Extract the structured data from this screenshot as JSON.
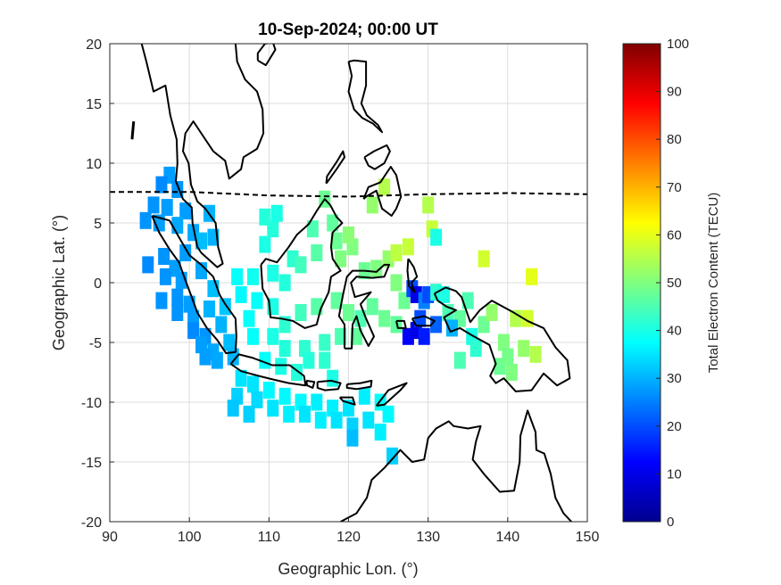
{
  "chart_data": {
    "type": "heatmap",
    "title": "10-Sep-2024; 00:00 UT",
    "xlabel": "Geographic Lon. (°)",
    "ylabel": "Geographic Lat. (°)",
    "xlim": [
      90,
      150
    ],
    "ylim": [
      -20,
      20
    ],
    "xticks": [
      90,
      100,
      110,
      120,
      130,
      140,
      150
    ],
    "yticks": [
      20,
      15,
      10,
      5,
      0,
      -5,
      -10,
      -15,
      -20
    ],
    "grid": true,
    "colorbar": {
      "label": "Total Electron Content (TECU)",
      "range": [
        0,
        100
      ],
      "ticks": [
        0,
        10,
        20,
        30,
        40,
        50,
        60,
        70,
        80,
        90,
        100
      ],
      "colormap": "jet"
    },
    "magnetic_equator": [
      [
        90,
        7.6
      ],
      [
        100,
        7.6
      ],
      [
        110,
        7.3
      ],
      [
        120,
        7.2
      ],
      [
        130,
        7.4
      ],
      [
        140,
        7.5
      ],
      [
        150,
        7.4
      ]
    ],
    "tec_points": [
      [
        97.5,
        9.0,
        28
      ],
      [
        96.5,
        8.2,
        26
      ],
      [
        98.5,
        7.8,
        27
      ],
      [
        95.5,
        6.5,
        27
      ],
      [
        97.2,
        6.3,
        28
      ],
      [
        94.5,
        5.2,
        27
      ],
      [
        96.2,
        5.0,
        28
      ],
      [
        99.5,
        6.0,
        28
      ],
      [
        102.5,
        5.8,
        30
      ],
      [
        98.5,
        4.8,
        29
      ],
      [
        100.5,
        4.2,
        29
      ],
      [
        103.0,
        3.8,
        30
      ],
      [
        101.5,
        3.5,
        31
      ],
      [
        94.8,
        1.5,
        26
      ],
      [
        96.8,
        2.2,
        27
      ],
      [
        98.2,
        1.2,
        28
      ],
      [
        99.5,
        2.5,
        28
      ],
      [
        97.0,
        0.5,
        27
      ],
      [
        99.0,
        0.2,
        28
      ],
      [
        101.5,
        1.0,
        29
      ],
      [
        96.5,
        -1.5,
        27
      ],
      [
        98.5,
        -1.2,
        27
      ],
      [
        100.0,
        -1.8,
        28
      ],
      [
        103.0,
        -0.5,
        31
      ],
      [
        98.5,
        -2.5,
        27
      ],
      [
        100.5,
        -3.0,
        28
      ],
      [
        102.5,
        -2.2,
        30
      ],
      [
        104.5,
        -2.0,
        32
      ],
      [
        100.5,
        -4.0,
        26
      ],
      [
        102.0,
        -4.5,
        27
      ],
      [
        104.0,
        -3.5,
        30
      ],
      [
        101.5,
        -5.2,
        28
      ],
      [
        103.0,
        -5.8,
        29
      ],
      [
        105.0,
        -5.0,
        31
      ],
      [
        102.0,
        -6.2,
        28
      ],
      [
        103.5,
        -6.5,
        29
      ],
      [
        105.5,
        -6.2,
        30
      ],
      [
        106.0,
        0.5,
        38
      ],
      [
        108.0,
        0.5,
        39
      ],
      [
        110.5,
        0.8,
        40
      ],
      [
        112.0,
        0.0,
        41
      ],
      [
        106.5,
        -1.0,
        37
      ],
      [
        108.5,
        -1.5,
        38
      ],
      [
        110.5,
        -2.0,
        40
      ],
      [
        109.5,
        3.2,
        40
      ],
      [
        110.5,
        4.5,
        41
      ],
      [
        111.0,
        5.8,
        40
      ],
      [
        109.5,
        5.5,
        41
      ],
      [
        113.0,
        2.0,
        42
      ],
      [
        115.5,
        4.5,
        45
      ],
      [
        117.0,
        7.0,
        48
      ],
      [
        118.0,
        5.0,
        47
      ],
      [
        114.0,
        1.5,
        44
      ],
      [
        116.0,
        2.5,
        46
      ],
      [
        118.5,
        3.5,
        48
      ],
      [
        120.5,
        3.0,
        50
      ],
      [
        120.0,
        4.0,
        51
      ],
      [
        119.0,
        2.0,
        50
      ],
      [
        122.0,
        1.0,
        48
      ],
      [
        123.5,
        1.2,
        50
      ],
      [
        125.0,
        2.0,
        52
      ],
      [
        123.0,
        6.5,
        52
      ],
      [
        124.5,
        8.0,
        55
      ],
      [
        126.0,
        2.5,
        56
      ],
      [
        127.5,
        3.0,
        57
      ],
      [
        130.0,
        6.5,
        55
      ],
      [
        130.5,
        4.5,
        57
      ],
      [
        131.0,
        3.8,
        40
      ],
      [
        126.0,
        0.0,
        50
      ],
      [
        127.0,
        -1.5,
        48
      ],
      [
        128.0,
        -0.5,
        20
      ],
      [
        128.5,
        -1.0,
        10
      ],
      [
        129.5,
        -1.5,
        25
      ],
      [
        130.0,
        -1.0,
        20
      ],
      [
        131.0,
        -0.8,
        42
      ],
      [
        132.0,
        -1.0,
        40
      ],
      [
        132.5,
        -2.5,
        45
      ],
      [
        134.0,
        -3.0,
        47
      ],
      [
        135.0,
        -1.5,
        45
      ],
      [
        127.5,
        -4.5,
        12
      ],
      [
        128.5,
        -4.0,
        10
      ],
      [
        129.5,
        -4.5,
        15
      ],
      [
        129.0,
        -3.0,
        20
      ],
      [
        131.0,
        -3.5,
        22
      ],
      [
        133.0,
        -3.8,
        30
      ],
      [
        135.5,
        -4.5,
        40
      ],
      [
        134.0,
        -6.5,
        45
      ],
      [
        136.0,
        -5.5,
        42
      ],
      [
        137.0,
        -3.5,
        48
      ],
      [
        138.0,
        -2.5,
        52
      ],
      [
        137.0,
        2.0,
        58
      ],
      [
        141.0,
        -3.0,
        55
      ],
      [
        142.5,
        -3.0,
        58
      ],
      [
        143.0,
        0.5,
        60
      ],
      [
        139.0,
        -7.0,
        48
      ],
      [
        140.5,
        -7.5,
        50
      ],
      [
        142.0,
        -5.5,
        52
      ],
      [
        143.5,
        -6.0,
        55
      ],
      [
        139.5,
        -5.0,
        50
      ],
      [
        140.0,
        -6.2,
        49
      ],
      [
        112.0,
        -3.5,
        42
      ],
      [
        114.0,
        -2.5,
        44
      ],
      [
        116.0,
        -2.0,
        46
      ],
      [
        118.5,
        -1.5,
        47
      ],
      [
        120.0,
        -2.5,
        48
      ],
      [
        121.0,
        -4.5,
        47
      ],
      [
        119.0,
        -4.5,
        45
      ],
      [
        117.0,
        -5.0,
        43
      ],
      [
        114.5,
        -5.5,
        42
      ],
      [
        112.0,
        -5.5,
        41
      ],
      [
        110.5,
        -4.5,
        40
      ],
      [
        108.0,
        -4.5,
        38
      ],
      [
        107.5,
        -3.0,
        38
      ],
      [
        109.5,
        -6.5,
        38
      ],
      [
        111.5,
        -7.0,
        40
      ],
      [
        113.5,
        -7.5,
        41
      ],
      [
        115.0,
        -6.5,
        41
      ],
      [
        117.0,
        -6.5,
        42
      ],
      [
        118.0,
        -8.0,
        40
      ],
      [
        106.5,
        -8.0,
        35
      ],
      [
        108.0,
        -8.5,
        35
      ],
      [
        110.0,
        -9.0,
        37
      ],
      [
        112.0,
        -9.5,
        37
      ],
      [
        114.0,
        -10.0,
        37
      ],
      [
        116.0,
        -10.0,
        36
      ],
      [
        118.0,
        -10.5,
        36
      ],
      [
        120.0,
        -10.5,
        35
      ],
      [
        122.0,
        -9.5,
        36
      ],
      [
        124.0,
        -10.0,
        38
      ],
      [
        125.0,
        -11.0,
        37
      ],
      [
        106.0,
        -9.5,
        33
      ],
      [
        108.5,
        -9.8,
        34
      ],
      [
        110.5,
        -10.5,
        35
      ],
      [
        112.5,
        -11.0,
        36
      ],
      [
        114.5,
        -11.0,
        35
      ],
      [
        116.5,
        -11.5,
        36
      ],
      [
        118.5,
        -11.5,
        35
      ],
      [
        120.5,
        -12.0,
        33
      ],
      [
        122.5,
        -11.5,
        35
      ],
      [
        124.0,
        -12.5,
        36
      ],
      [
        120.5,
        -13.0,
        31
      ],
      [
        125.5,
        -14.5,
        33
      ],
      [
        105.5,
        -10.5,
        32
      ],
      [
        107.5,
        -11.0,
        33
      ],
      [
        121.5,
        -3.0,
        45
      ],
      [
        123.0,
        -2.0,
        47
      ],
      [
        124.5,
        -3.0,
        48
      ],
      [
        126.0,
        -3.5,
        47
      ]
    ]
  }
}
